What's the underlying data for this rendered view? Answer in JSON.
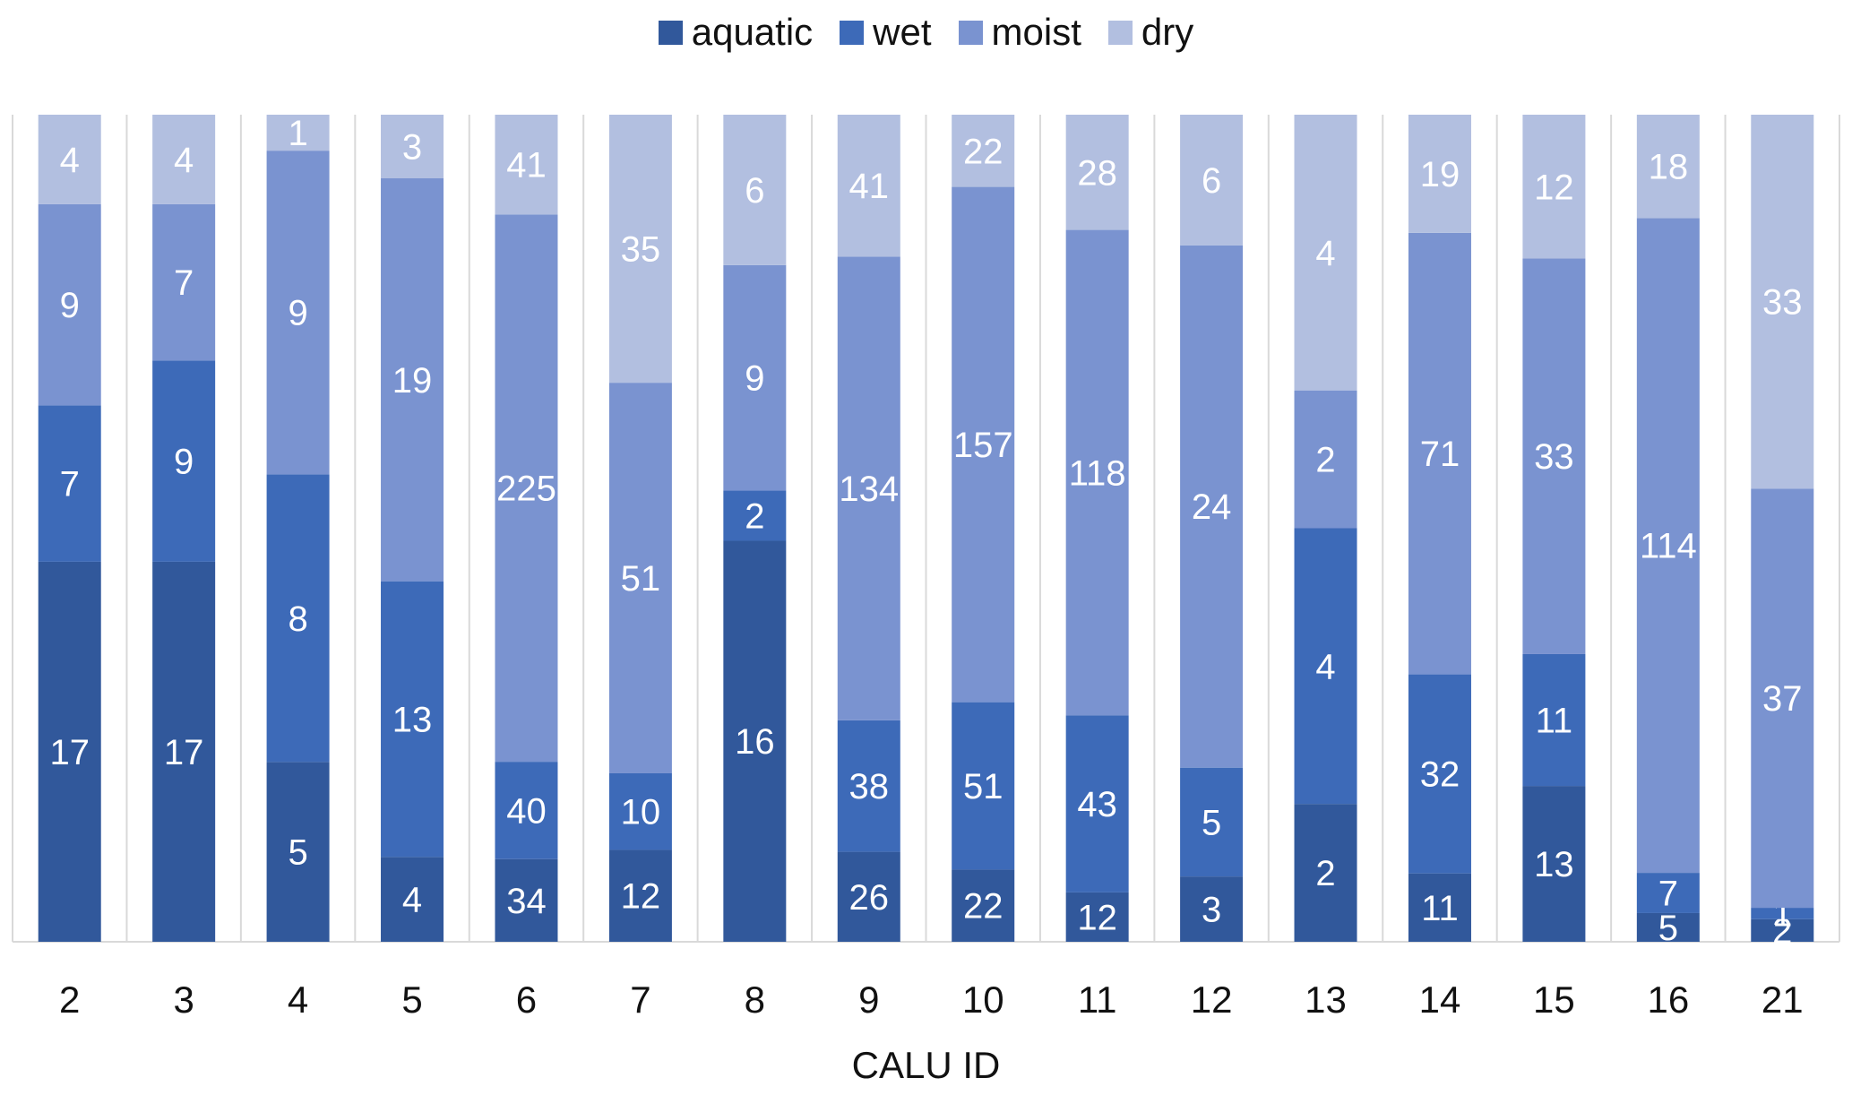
{
  "legend": {
    "items": [
      {
        "label": "aquatic",
        "color": "#31589b"
      },
      {
        "label": "wet",
        "color": "#3d6ab8"
      },
      {
        "label": "moist",
        "color": "#7a93d0"
      },
      {
        "label": "dry",
        "color": "#b2bfe0"
      }
    ]
  },
  "chart_data": {
    "type": "bar",
    "stacked": true,
    "normalized": true,
    "title": "",
    "xlabel": "CALU ID",
    "ylabel": "",
    "categories": [
      "2",
      "3",
      "4",
      "5",
      "6",
      "7",
      "8",
      "9",
      "10",
      "11",
      "12",
      "13",
      "14",
      "15",
      "16",
      "21"
    ],
    "series": [
      {
        "name": "aquatic",
        "color": "#31589b",
        "values": [
          17,
          17,
          5,
          4,
          34,
          12,
          16,
          26,
          22,
          12,
          3,
          2,
          11,
          13,
          5,
          2
        ]
      },
      {
        "name": "wet",
        "color": "#3d6ab8",
        "values": [
          7,
          9,
          8,
          13,
          40,
          10,
          2,
          38,
          51,
          43,
          5,
          4,
          32,
          11,
          7,
          1
        ]
      },
      {
        "name": "moist",
        "color": "#7a93d0",
        "values": [
          9,
          7,
          9,
          19,
          225,
          51,
          9,
          134,
          157,
          118,
          24,
          2,
          71,
          33,
          114,
          37
        ]
      },
      {
        "name": "dry",
        "color": "#b2bfe0",
        "values": [
          4,
          4,
          1,
          3,
          41,
          35,
          6,
          41,
          22,
          28,
          6,
          4,
          19,
          12,
          18,
          33
        ]
      }
    ],
    "grid": "vertical",
    "legend_position": "top"
  }
}
